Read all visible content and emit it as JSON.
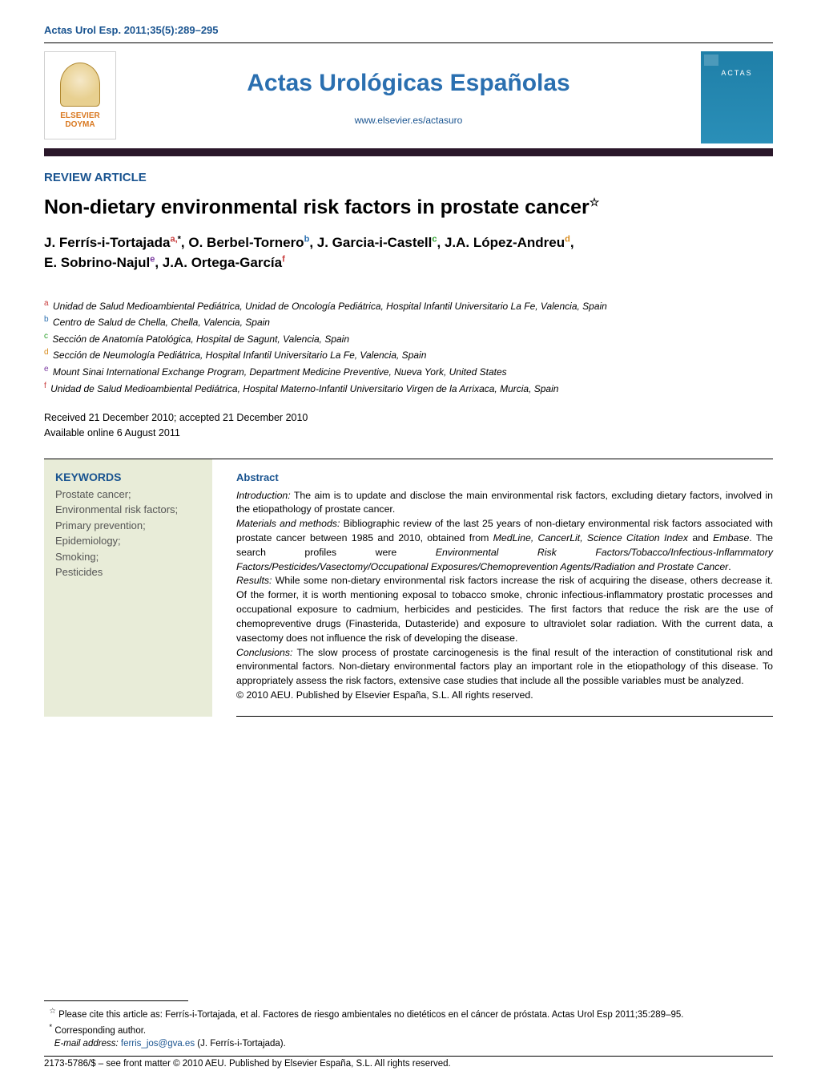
{
  "citation_header": "Actas Urol Esp. 2011;35(5):289–295",
  "publisher": {
    "name": "ELSEVIER\nDOYMA"
  },
  "journal": {
    "title": "Actas Urológicas Españolas",
    "url": "www.elsevier.es/actasuro",
    "cover_title": "ACTAS"
  },
  "article_type": "REVIEW ARTICLE",
  "article_title": "Non-dietary environmental risk factors in prostate cancer",
  "star_marker": "☆",
  "authors_line1": "J. Ferrís-i-Tortajada",
  "authors_a_sup": "a,",
  "authors_asterisk": "*",
  "authors_sep1": ", O. Berbel-Tornero",
  "authors_b_sup": "b",
  "authors_sep2": ", J. Garcia-i-Castell",
  "authors_c_sup": "c",
  "authors_sep3": ", J.A. López-Andreu",
  "authors_d_sup": "d",
  "authors_sep4": ",",
  "authors_line2a": "E. Sobrino-Najul",
  "authors_e_sup": "e",
  "authors_sep5": ", J.A. Ortega-García",
  "authors_f_sup": "f",
  "affiliations": {
    "a": "Unidad de Salud Medioambiental Pediátrica, Unidad de Oncología Pediátrica, Hospital Infantil Universitario La Fe, Valencia, Spain",
    "b": "Centro de Salud de Chella, Chella, Valencia, Spain",
    "c": "Sección de Anatomía Patológica, Hospital de Sagunt, Valencia, Spain",
    "d": "Sección de Neumología Pediátrica, Hospital Infantil Universitario La Fe, Valencia, Spain",
    "e": "Mount Sinai International Exchange Program, Department Medicine Preventive, Nueva York, United States",
    "f": "Unidad de Salud Medioambiental Pediátrica, Hospital Materno-Infantil Universitario Virgen de la Arrixaca, Murcia, Spain"
  },
  "dates": {
    "received_accepted": "Received 21 December 2010; accepted 21 December 2010",
    "online": "Available online 6 August 2011"
  },
  "keywords": {
    "heading": "KEYWORDS",
    "items": "Prostate cancer;\nEnvironmental risk factors;\nPrimary prevention;\nEpidemiology;\nSmoking;\nPesticides"
  },
  "abstract": {
    "heading": "Abstract",
    "intro_label": "Introduction:",
    "intro_text": " The aim is to update and disclose the main environmental risk factors, excluding dietary factors, involved in the etiopathology of prostate cancer.",
    "methods_label": "Materials and methods:",
    "methods_text_a": " Bibliographic review of the last 25 years of non-dietary environmental risk factors associated with prostate cancer between 1985 and 2010, obtained from ",
    "methods_sources": "MedLine, CancerLit, Science Citation Index",
    "methods_and": " and ",
    "methods_embase": "Embase",
    "methods_text_b": ". The search profiles were ",
    "methods_profiles": "Environmental Risk Factors/Tobacco/Infectious-Inflammatory Factors/Pesticides/Vasectomy/Occupational Exposures/Chemoprevention Agents/Radiation and Prostate Cancer",
    "methods_period": ".",
    "results_label": "Results:",
    "results_text": " While some non-dietary environmental risk factors increase the risk of acquiring the disease, others decrease it. Of the former, it is worth mentioning exposal to tobacco smoke, chronic infectious-inflammatory prostatic processes and occupational exposure to cadmium, herbicides and pesticides. The first factors that reduce the risk are the use of chemopreventive drugs (Finasterida, Dutasteride) and exposure to ultraviolet solar radiation. With the current data, a vasectomy does not influence the risk of developing the disease.",
    "conclusions_label": "Conclusions:",
    "conclusions_text": " The slow process of prostate carcinogenesis is the final result of the interaction of constitutional risk and environmental factors. Non-dietary environmental factors play an important role in the etiopathology of this disease. To appropriately assess the risk factors, extensive case studies that include all the possible variables must be analyzed.",
    "copyright": "© 2010 AEU. Published by Elsevier España, S.L. All rights reserved."
  },
  "footnotes": {
    "cite_marker": "☆",
    "cite_text": " Please cite this article as: Ferrís-i-Tortajada, et al. Factores de riesgo ambientales no dietéticos en el cáncer de próstata. Actas Urol Esp 2011;35:289–95.",
    "corr_marker": "*",
    "corr_text": " Corresponding author.",
    "email_label": "E-mail address:",
    "email": "ferris_jos@gva.es",
    "email_tail": " (J. Ferrís-i-Tortajada)."
  },
  "copyright_line": "2173-5786/$ – see front matter © 2010 AEU. Published by Elsevier España, S.L. All rights reserved.",
  "colors": {
    "link_blue": "#1a5490",
    "journal_blue": "#2a6fb0",
    "dark_bar": "#2a172a",
    "kw_bg": "#e8ecd8",
    "sup_a": "#c83c3c",
    "sup_b": "#2a6fb0",
    "sup_c": "#2a9f2a",
    "sup_d": "#d88a1a",
    "sup_e": "#7a3aa0",
    "sup_f": "#c83c3c"
  }
}
